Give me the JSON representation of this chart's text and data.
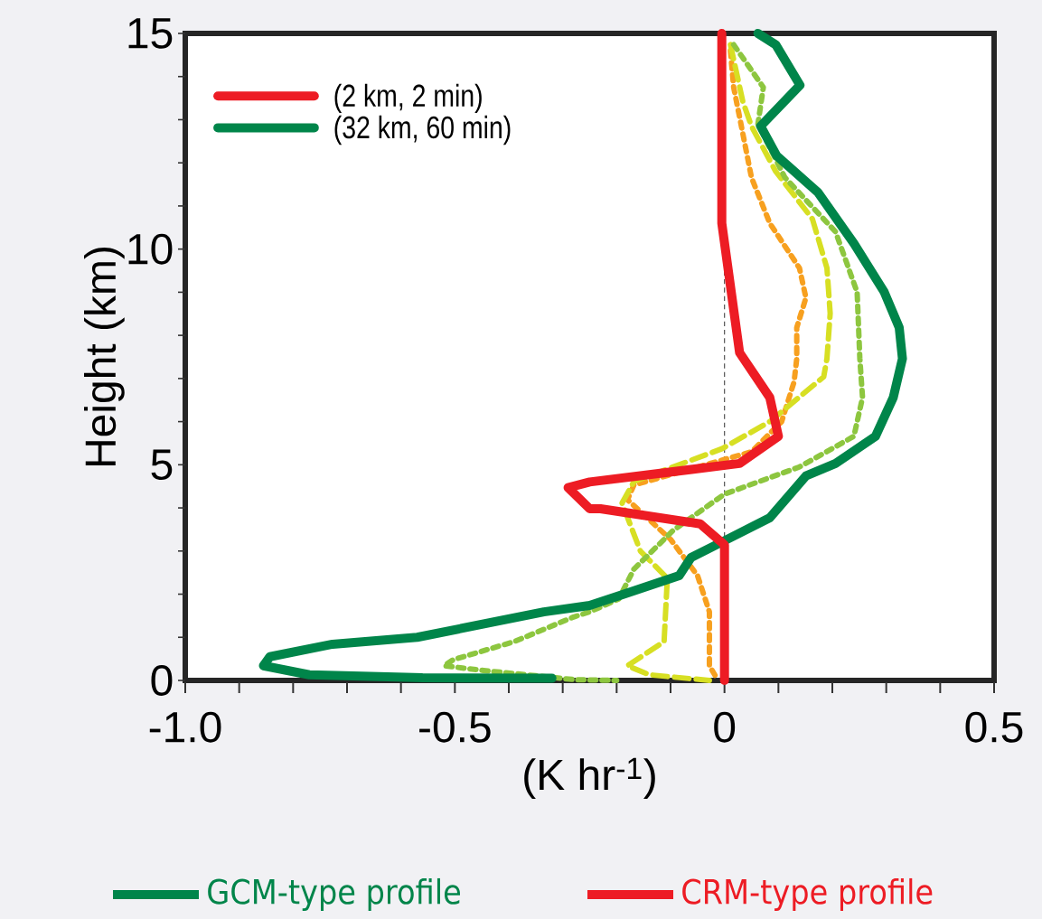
{
  "chart_data": {
    "type": "line",
    "xlabel": "(K hr$^{-1}$)",
    "ylabel": "Height (km)",
    "xlim": [
      -1.0,
      0.5
    ],
    "ylim": [
      0,
      15
    ],
    "xticks": [
      {
        "value": -1.0,
        "label": "-1.0"
      },
      {
        "value": -0.9,
        "label": null
      },
      {
        "value": -0.8,
        "label": null
      },
      {
        "value": -0.7,
        "label": null
      },
      {
        "value": -0.6,
        "label": null
      },
      -0.5,
      {
        "value": -0.4,
        "label": null
      },
      {
        "value": -0.3,
        "label": null
      },
      {
        "value": -0.2,
        "label": null
      },
      {
        "value": -0.1,
        "label": null
      },
      0,
      {
        "value": 0.1,
        "label": null
      },
      {
        "value": 0.2,
        "label": null
      },
      {
        "value": 0.3,
        "label": null
      },
      {
        "value": 0.4,
        "label": null
      },
      0.5
    ],
    "yticks": [
      0,
      {
        "value": 1,
        "label": null
      },
      {
        "value": 2,
        "label": null
      },
      {
        "value": 3,
        "label": null
      },
      {
        "value": 4,
        "label": null
      },
      5,
      {
        "value": 6,
        "label": null
      },
      {
        "value": 7,
        "label": null
      },
      {
        "value": 8,
        "label": null
      },
      {
        "value": 9,
        "label": null
      },
      10,
      {
        "value": 11,
        "label": null
      },
      {
        "value": 12,
        "label": null
      },
      {
        "value": 13,
        "label": null
      },
      {
        "value": 14,
        "label": null
      },
      15
    ],
    "grid": false,
    "legend": "top left",
    "ref_lines": [
      {
        "axis": "x",
        "value": 0,
        "color": "#555555",
        "line_style": "dashed"
      }
    ],
    "series": [
      {
        "name": "(2 km,    2  min)",
        "color": "#ed1c24",
        "line_style": "solid",
        "x": [
          -0.005,
          -0.005,
          0.028,
          0.084,
          0.1,
          0.028,
          -0.25,
          -0.29,
          -0.25,
          -0.23,
          -0.045,
          0,
          0
        ],
        "values": [
          15,
          10.6,
          7.6,
          6.56,
          5.66,
          5.03,
          4.6,
          4.47,
          3.98,
          3.98,
          3.63,
          3.14,
          0
        ]
      },
      {
        "name": "(32 km, 60 min)",
        "color": "#00854a",
        "line_style": "solid",
        "x": [
          0.062,
          0.095,
          0.14,
          0.067,
          0.097,
          0.173,
          0.24,
          0.296,
          0.324,
          0.33,
          0.313,
          0.28,
          0.206,
          0.151,
          0.084,
          0.005,
          -0.062,
          -0.084,
          -0.184,
          -0.25,
          -0.335,
          -0.57,
          -0.727,
          -0.843,
          -0.855,
          -0.77,
          -0.56,
          -0.32
        ],
        "values": [
          15,
          14.74,
          13.8,
          12.85,
          12.16,
          11.32,
          10.13,
          9.01,
          8.18,
          7.46,
          6.56,
          5.66,
          5.03,
          4.74,
          3.77,
          3.27,
          2.85,
          2.43,
          2.01,
          1.74,
          1.59,
          1.0,
          0.84,
          0.55,
          0.34,
          0.13,
          0.06,
          0.05
        ]
      },
      {
        "color": "#8dc63f",
        "line_style": "dotted",
        "x": [
          0.017,
          0.072,
          0.062,
          0.112,
          0.206,
          0.246,
          0.251,
          0.256,
          0.24,
          0.139,
          0,
          -0.095,
          -0.168,
          -0.196,
          -0.25,
          -0.28,
          -0.39,
          -0.503,
          -0.52,
          -0.447,
          -0.28,
          -0.2
        ],
        "values": [
          14.74,
          13.75,
          12.9,
          11.66,
          10.4,
          9.0,
          7.46,
          6.56,
          5.66,
          4.95,
          4.32,
          3.48,
          2.58,
          1.89,
          1.59,
          1.47,
          0.9,
          0.48,
          0.34,
          0.23,
          0.02,
          0
        ]
      },
      {
        "color": "#d7df23",
        "line_style": "dashed",
        "x": [
          0.011,
          0.034,
          0.05,
          0.095,
          0.163,
          0.19,
          0.196,
          0.19,
          0.184,
          0.084,
          -0.005,
          -0.168,
          -0.19,
          -0.156,
          -0.106,
          -0.112,
          -0.18,
          -0.139,
          -0.028
        ],
        "values": [
          14.74,
          13.42,
          12.85,
          11.8,
          10.7,
          9.56,
          8.51,
          7.46,
          7.04,
          6.0,
          5.37,
          4.61,
          4.11,
          3.0,
          2.37,
          0.9,
          0.34,
          0.13,
          0
        ]
      },
      {
        "color": "#f7a01f",
        "line_style": "dotted",
        "x": [
          0.011,
          0.017,
          0.028,
          0.05,
          0.084,
          0.139,
          0.151,
          0.134,
          0.134,
          0.129,
          0.106,
          0.05,
          -0.168,
          -0.18,
          -0.1,
          -0.05,
          -0.028,
          -0.028,
          -0.012
        ],
        "values": [
          14.6,
          13.75,
          13.06,
          11.66,
          10.6,
          9.56,
          8.87,
          8.18,
          7.46,
          6.92,
          6.0,
          5.3,
          4.53,
          4.19,
          3.27,
          2.43,
          1.59,
          0.34,
          0
        ]
      }
    ],
    "annotations": [
      "GCM-type profile",
      "CRM-type profile"
    ]
  }
}
